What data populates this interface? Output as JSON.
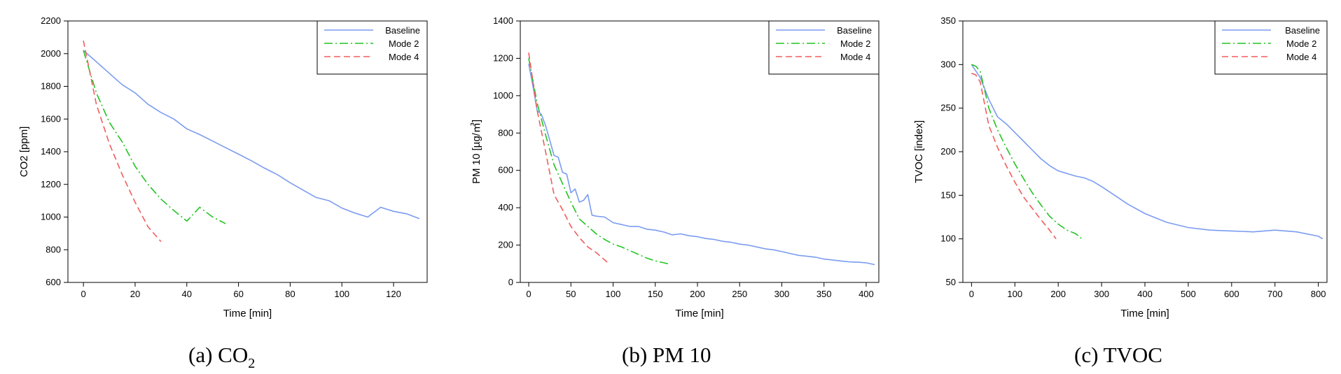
{
  "captions": [
    {
      "prefix": "(a) CO",
      "sub": "2"
    },
    {
      "prefix": "(b) PM 10",
      "sub": ""
    },
    {
      "prefix": "(c) TVOC",
      "sub": ""
    }
  ],
  "colors": {
    "Baseline": "#7b9cf0",
    "Mode 2": "#22c422",
    "Mode 4": "#f25c5c"
  },
  "chart_data": [
    {
      "type": "line",
      "xlabel": "Time [min]",
      "ylabel": "CO2 [ppm]",
      "xlim": [
        -6,
        133
      ],
      "ylim": [
        600,
        2200
      ],
      "xticks": [
        0,
        20,
        40,
        60,
        80,
        100,
        120
      ],
      "yticks": [
        600,
        800,
        1000,
        1200,
        1400,
        1600,
        1800,
        2000,
        2200
      ],
      "legend_position": "top-right",
      "series": [
        {
          "name": "Baseline",
          "x": [
            0,
            5,
            10,
            15,
            20,
            25,
            30,
            35,
            40,
            45,
            50,
            55,
            60,
            65,
            70,
            75,
            80,
            85,
            90,
            95,
            100,
            105,
            110,
            115,
            120,
            125,
            130
          ],
          "y": [
            2020,
            1950,
            1880,
            1810,
            1760,
            1690,
            1640,
            1600,
            1540,
            1505,
            1465,
            1425,
            1385,
            1345,
            1300,
            1260,
            1210,
            1165,
            1120,
            1100,
            1055,
            1025,
            1000,
            1060,
            1035,
            1020,
            990
          ]
        },
        {
          "name": "Mode 2",
          "x": [
            0,
            5,
            10,
            15,
            20,
            25,
            30,
            35,
            40,
            45,
            50,
            55
          ],
          "y": [
            2020,
            1760,
            1580,
            1460,
            1310,
            1200,
            1110,
            1040,
            975,
            1060,
            1000,
            960
          ]
        },
        {
          "name": "Mode 4",
          "x": [
            0,
            5,
            10,
            15,
            20,
            25,
            30
          ],
          "y": [
            2080,
            1690,
            1450,
            1260,
            1090,
            940,
            850
          ]
        }
      ]
    },
    {
      "type": "line",
      "xlabel": "Time [min]",
      "ylabel": "PM 10 [µg/㎥]",
      "xlim": [
        -10,
        415
      ],
      "ylim": [
        0,
        1400
      ],
      "xticks": [
        0,
        50,
        100,
        150,
        200,
        250,
        300,
        350,
        400
      ],
      "yticks": [
        0,
        200,
        400,
        600,
        800,
        1000,
        1200,
        1400
      ],
      "legend_position": "top-right",
      "series": [
        {
          "name": "Baseline",
          "x": [
            0,
            5,
            10,
            15,
            20,
            25,
            30,
            35,
            40,
            45,
            50,
            55,
            60,
            65,
            70,
            75,
            80,
            90,
            100,
            110,
            120,
            130,
            140,
            150,
            160,
            170,
            180,
            190,
            200,
            210,
            220,
            230,
            240,
            250,
            260,
            270,
            280,
            290,
            300,
            310,
            320,
            330,
            340,
            350,
            360,
            370,
            380,
            390,
            400,
            410
          ],
          "y": [
            1170,
            1050,
            920,
            900,
            840,
            760,
            680,
            670,
            590,
            580,
            480,
            500,
            430,
            440,
            470,
            360,
            355,
            350,
            320,
            310,
            300,
            300,
            285,
            280,
            270,
            255,
            260,
            250,
            245,
            235,
            230,
            220,
            215,
            205,
            200,
            190,
            180,
            175,
            165,
            155,
            145,
            140,
            135,
            125,
            120,
            115,
            110,
            108,
            105,
            95
          ]
        },
        {
          "name": "Mode 2",
          "x": [
            0,
            10,
            20,
            30,
            40,
            50,
            60,
            70,
            80,
            90,
            100,
            110,
            120,
            130,
            140,
            150,
            160,
            165
          ],
          "y": [
            1200,
            960,
            790,
            630,
            530,
            430,
            340,
            300,
            260,
            230,
            205,
            190,
            170,
            150,
            130,
            115,
            105,
            100
          ]
        },
        {
          "name": "Mode 4",
          "x": [
            0,
            10,
            20,
            30,
            40,
            50,
            60,
            70,
            80,
            90,
            95
          ],
          "y": [
            1230,
            920,
            700,
            470,
            390,
            300,
            240,
            190,
            160,
            120,
            100
          ]
        }
      ]
    },
    {
      "type": "line",
      "xlabel": "Time [min]",
      "ylabel": "TVOC [index]",
      "xlim": [
        -20,
        820
      ],
      "ylim": [
        50,
        350
      ],
      "xticks": [
        0,
        100,
        200,
        300,
        400,
        500,
        600,
        700,
        800
      ],
      "yticks": [
        50,
        100,
        150,
        200,
        250,
        300,
        350
      ],
      "legend_position": "top-right",
      "series": [
        {
          "name": "Baseline",
          "x": [
            0,
            20,
            40,
            60,
            80,
            100,
            120,
            140,
            160,
            180,
            200,
            220,
            240,
            260,
            280,
            300,
            330,
            360,
            400,
            450,
            500,
            550,
            600,
            650,
            700,
            750,
            800,
            810
          ],
          "y": [
            300,
            285,
            260,
            240,
            232,
            222,
            212,
            202,
            192,
            184,
            178,
            175,
            172,
            170,
            166,
            160,
            150,
            140,
            129,
            119,
            113,
            110,
            109,
            108,
            110,
            108,
            103,
            100
          ]
        },
        {
          "name": "Mode 2",
          "x": [
            0,
            10,
            20,
            40,
            60,
            80,
            100,
            120,
            140,
            160,
            180,
            200,
            220,
            240,
            255
          ],
          "y": [
            300,
            298,
            292,
            250,
            225,
            205,
            186,
            169,
            153,
            139,
            126,
            117,
            110,
            106,
            100
          ]
        },
        {
          "name": "Mode 4",
          "x": [
            0,
            10,
            20,
            40,
            60,
            80,
            100,
            120,
            140,
            160,
            180,
            195
          ],
          "y": [
            290,
            288,
            280,
            230,
            205,
            184,
            165,
            148,
            135,
            122,
            110,
            100
          ]
        }
      ]
    }
  ]
}
